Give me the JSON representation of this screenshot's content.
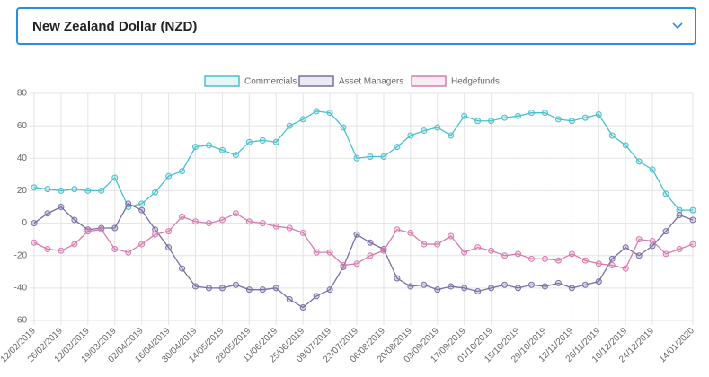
{
  "dropdown": {
    "label": "New Zealand Dollar (NZD)"
  },
  "chart_data": {
    "type": "line",
    "categories": [
      "12/02/2019",
      null,
      "26/02/2019",
      null,
      "12/03/2019",
      null,
      "19/03/2019",
      null,
      "02/04/2019",
      null,
      "16/04/2019",
      null,
      "30/04/2019",
      null,
      "14/05/2019",
      null,
      "28/05/2019",
      null,
      "11/06/2019",
      null,
      "25/06/2019",
      null,
      "09/07/2019",
      null,
      "23/07/2019",
      null,
      "06/08/2019",
      null,
      "20/08/2019",
      null,
      "03/09/2019",
      null,
      "17/09/2019",
      null,
      "01/10/2019",
      null,
      "15/10/2019",
      null,
      "29/10/2019",
      null,
      "12/11/2019",
      null,
      "26/11/2019",
      null,
      "10/12/2019",
      null,
      "24/12/2019",
      null,
      null,
      "14/01/2020"
    ],
    "series": [
      {
        "name": "Commercials",
        "color": "#4bc0cd",
        "values": [
          22,
          21,
          20,
          21,
          20,
          20,
          28,
          10,
          12,
          19,
          29,
          32,
          47,
          48,
          45,
          42,
          50,
          51,
          50,
          60,
          64,
          69,
          68,
          59,
          40,
          41,
          41,
          47,
          54,
          57,
          59,
          54,
          66,
          63,
          63,
          65,
          66,
          68,
          68,
          64,
          63,
          65,
          67,
          54,
          48,
          38,
          33,
          18,
          8,
          8
        ]
      },
      {
        "name": "Asset Managers",
        "color": "#7a6ea6",
        "values": [
          0,
          6,
          10,
          2,
          -4,
          -3,
          -3,
          12,
          8,
          -4,
          -15,
          -28,
          -39,
          -40,
          -40,
          -38,
          -41,
          -41,
          -40,
          -47,
          -52,
          -45,
          -41,
          -27,
          -7,
          -12,
          -16,
          -34,
          -39,
          -38,
          -41,
          -39,
          -40,
          -42,
          -40,
          -38,
          -40,
          -38,
          -39,
          -37,
          -40,
          -38,
          -36,
          -22,
          -15,
          -20,
          -14,
          -5,
          5,
          2
        ]
      },
      {
        "name": "Hedgefunds",
        "color": "#d77bae",
        "values": [
          -12,
          -16,
          -17,
          -13,
          -5,
          -4,
          -16,
          -18,
          -13,
          -7,
          -5,
          4,
          1,
          0,
          2,
          6,
          1,
          0,
          -2,
          -3,
          -6,
          -18,
          -18,
          -26,
          -25,
          -20,
          -17,
          -4,
          -6,
          -13,
          -13,
          -8,
          -18,
          -15,
          -17,
          -20,
          -19,
          -22,
          -22,
          -23,
          -19,
          -23,
          -25,
          -26,
          -28,
          -10,
          -11,
          -19,
          -16,
          -13
        ]
      }
    ],
    "ylim": [
      -60,
      80
    ],
    "yticks": [
      -60,
      -40,
      -20,
      0,
      20,
      40,
      60,
      80
    ],
    "grid": true,
    "legend": "top"
  }
}
